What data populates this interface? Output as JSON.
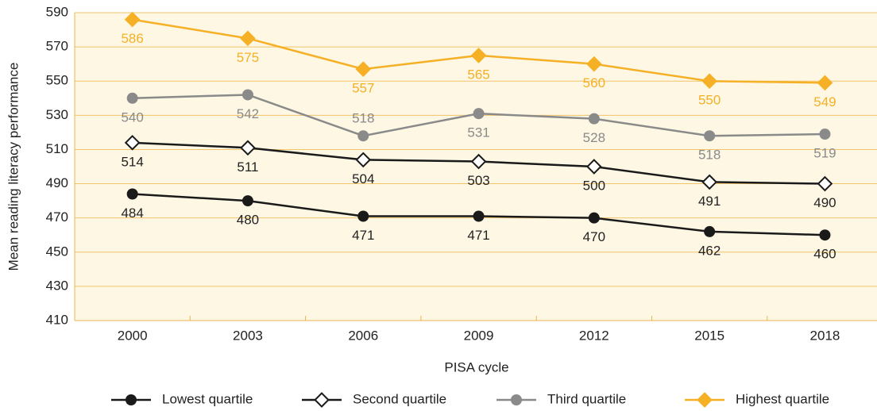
{
  "chart_data": {
    "type": "line",
    "x_label": "PISA cycle",
    "y_label": "Mean reading literacy performance",
    "categories": [
      "2000",
      "2003",
      "2006",
      "2009",
      "2012",
      "2015",
      "2018"
    ],
    "ylim": [
      410,
      590
    ],
    "yticks": [
      410,
      430,
      450,
      470,
      490,
      510,
      530,
      550,
      570,
      590
    ],
    "grid": true,
    "legend": "bottom",
    "series": [
      {
        "name": "Lowest quartile",
        "color": "#1a1a1a",
        "marker": "circle",
        "values": [
          484,
          480,
          471,
          471,
          470,
          462,
          460
        ]
      },
      {
        "name": "Second quartile",
        "color": "#1a1a1a",
        "marker": "open-diamond",
        "values": [
          514,
          511,
          504,
          503,
          500,
          491,
          490
        ]
      },
      {
        "name": "Third quartile",
        "color": "#8a8a8a",
        "marker": "circle",
        "values": [
          540,
          542,
          518,
          531,
          528,
          518,
          519
        ]
      },
      {
        "name": "Highest quartile",
        "color": "#f5b025",
        "marker": "diamond",
        "values": [
          586,
          575,
          557,
          565,
          560,
          550,
          549
        ]
      }
    ]
  }
}
